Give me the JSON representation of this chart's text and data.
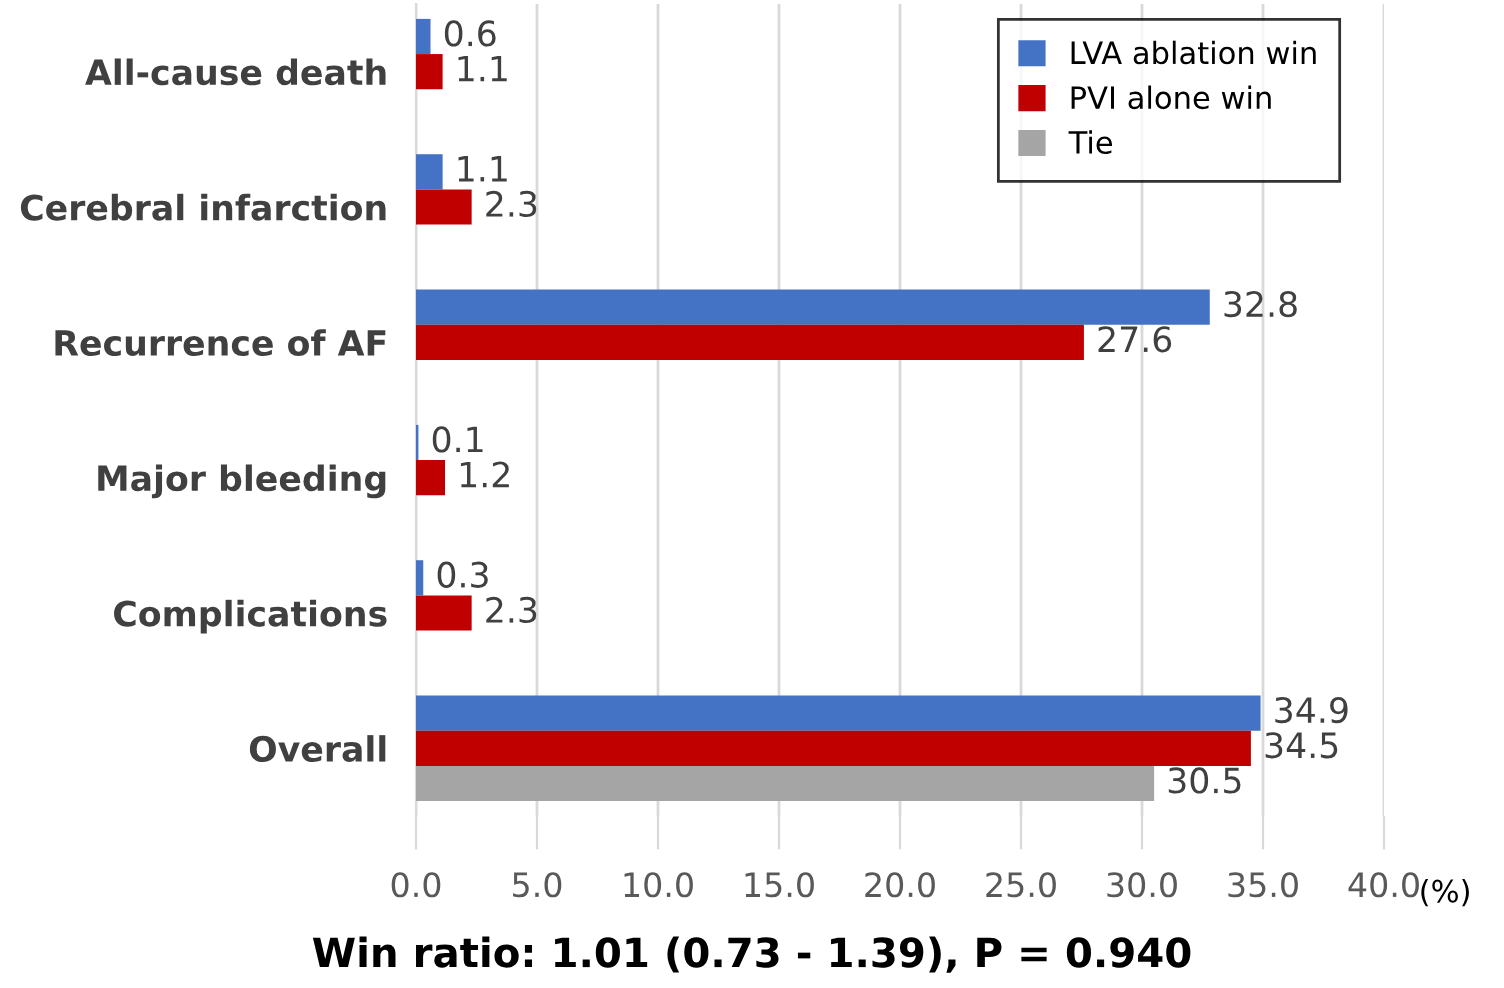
{
  "chart_data": {
    "type": "bar",
    "orientation": "horizontal",
    "categories": [
      "All-cause death",
      "Cerebral infarction",
      "Recurrence of AF",
      "Major bleeding",
      "Complications",
      "Overall"
    ],
    "series": [
      {
        "name": "LVA ablation win",
        "color": "#4472c4",
        "values": [
          0.6,
          1.1,
          32.8,
          0.1,
          0.3,
          34.9
        ]
      },
      {
        "name": "PVI alone win",
        "color": "#c00000",
        "values": [
          1.1,
          2.3,
          27.6,
          1.2,
          2.3,
          34.5
        ]
      },
      {
        "name": "Tie",
        "color": "#a5a5a5",
        "values": [
          null,
          null,
          null,
          null,
          null,
          30.5
        ]
      }
    ],
    "xlim": [
      0,
      40
    ],
    "xticks": [
      {
        "value": 0,
        "label": "0.0"
      },
      {
        "value": 5,
        "label": "5.0"
      },
      {
        "value": 10,
        "label": "10.0"
      },
      {
        "value": 15,
        "label": "15.0"
      },
      {
        "value": 20,
        "label": "20.0"
      },
      {
        "value": 25,
        "label": "25.0"
      },
      {
        "value": 30,
        "label": "30.0"
      },
      {
        "value": 35,
        "label": "35.0"
      },
      {
        "value": 40,
        "label": "40.0"
      }
    ],
    "xlabel": "(%)",
    "annotations": [
      "Win ratio: 1.01 (0.73 - 1.39), P = 0.940"
    ],
    "data_labels": true,
    "grid": "x",
    "legend": "top right"
  }
}
